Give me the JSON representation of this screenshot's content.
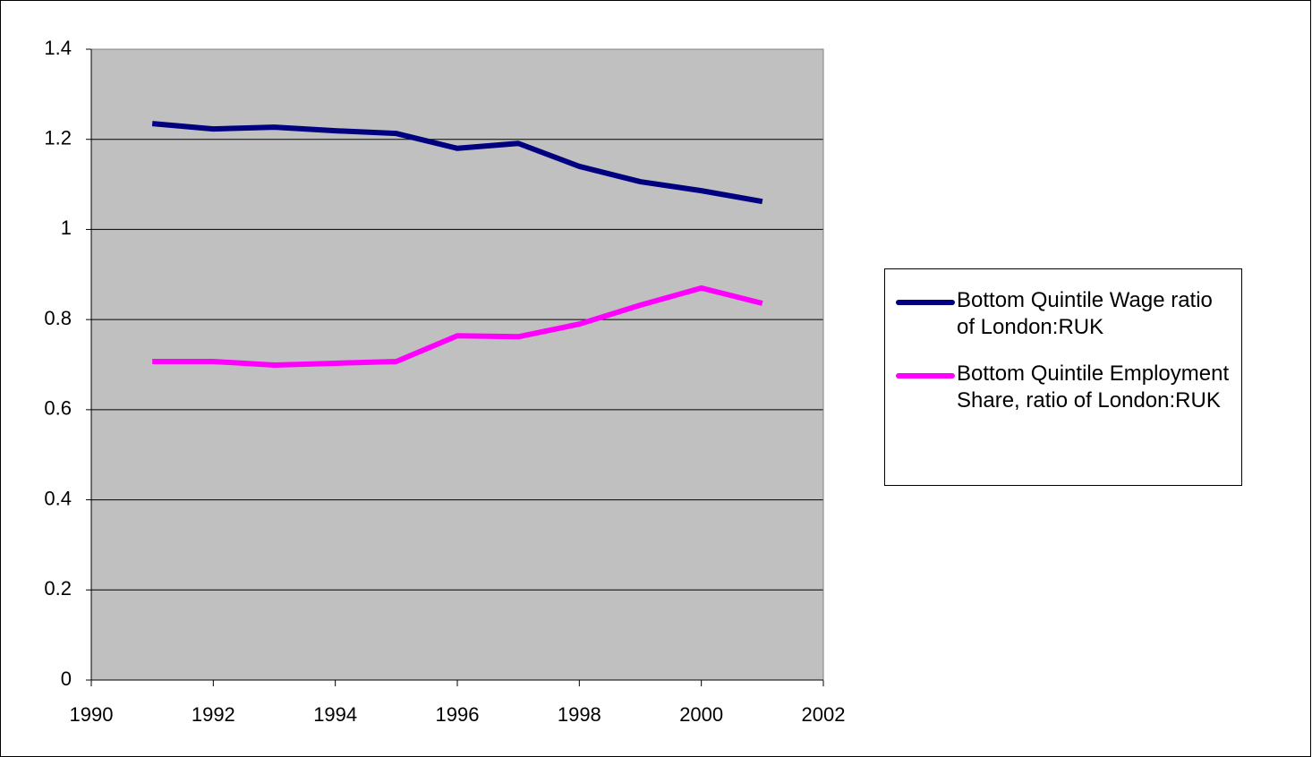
{
  "chart_data": {
    "type": "line",
    "x": [
      1991,
      1992,
      1993,
      1994,
      1995,
      1996,
      1997,
      1998,
      1999,
      2000,
      2001
    ],
    "series": [
      {
        "name": "Bottom Quintile Wage ratio of London:RUK",
        "color": "#000080",
        "values": [
          1.235,
          1.223,
          1.227,
          1.219,
          1.213,
          1.18,
          1.191,
          1.14,
          1.106,
          1.086,
          1.062
        ]
      },
      {
        "name": "Bottom Quintile Employment Share, ratio of London:RUK",
        "color": "#ff00ff",
        "values": [
          0.707,
          0.707,
          0.699,
          0.703,
          0.707,
          0.764,
          0.762,
          0.79,
          0.832,
          0.87,
          0.836
        ]
      }
    ],
    "xlim": [
      1990,
      2002
    ],
    "xticks": [
      1990,
      1992,
      1994,
      1996,
      1998,
      2000,
      2002
    ],
    "ylim": [
      0,
      1.4
    ],
    "yticks": [
      0,
      0.2,
      0.4,
      0.6,
      0.8,
      1,
      1.2,
      1.4
    ],
    "grid": true,
    "legend": "right"
  }
}
